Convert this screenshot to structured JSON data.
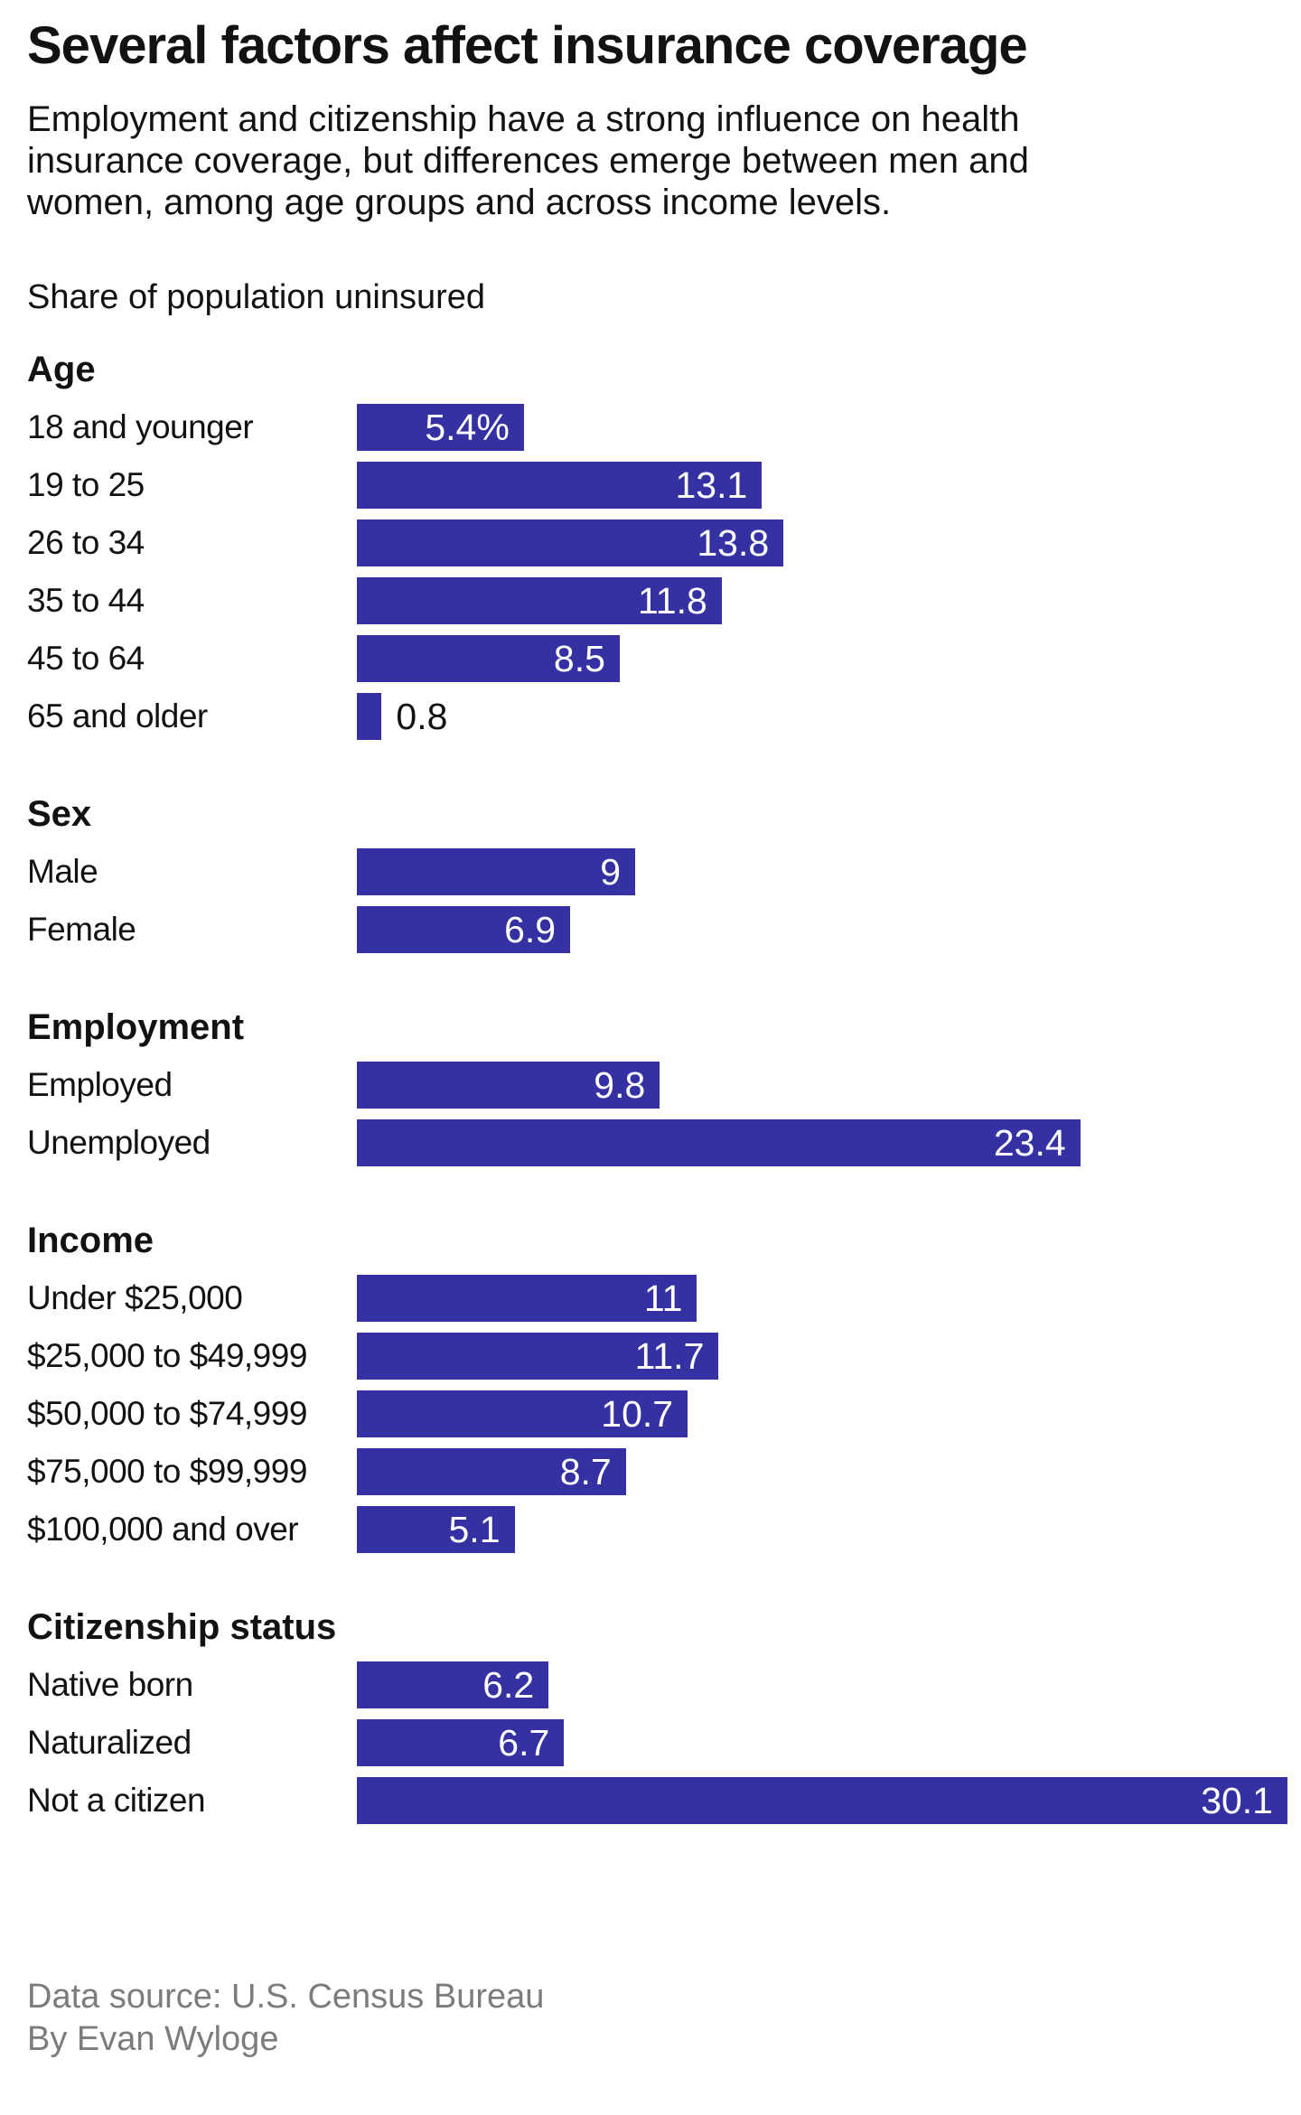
{
  "header": {
    "title": "Several factors affect insurance coverage",
    "subtitle": "Employment and citizenship have a strong influence on health insurance coverage, but differences emerge between men and women, among age groups and across income levels.",
    "chart_label": "Share of population uninsured"
  },
  "colors": {
    "bar": "#3531A3",
    "text": "#121212",
    "muted": "#7C7C7C",
    "value_label": "#FFFFFF"
  },
  "chart_data": {
    "type": "bar",
    "orientation": "horizontal",
    "title": "Share of population uninsured",
    "value_unit": "percent of population uninsured",
    "xlim": [
      0,
      30.1
    ],
    "grid": false,
    "legend": "none",
    "bar_color": "#3531A3",
    "groups": [
      {
        "name": "Age",
        "rows": [
          {
            "label": "18 and younger",
            "value": 5.4,
            "display": "5.4%"
          },
          {
            "label": "19 to 25",
            "value": 13.1,
            "display": "13.1"
          },
          {
            "label": "26 to 34",
            "value": 13.8,
            "display": "13.8"
          },
          {
            "label": "35 to 44",
            "value": 11.8,
            "display": "11.8"
          },
          {
            "label": "45 to 64",
            "value": 8.5,
            "display": "8.5"
          },
          {
            "label": "65 and older",
            "value": 0.8,
            "display": "0.8"
          }
        ]
      },
      {
        "name": "Sex",
        "rows": [
          {
            "label": "Male",
            "value": 9,
            "display": "9"
          },
          {
            "label": "Female",
            "value": 6.9,
            "display": "6.9"
          }
        ]
      },
      {
        "name": "Employment",
        "rows": [
          {
            "label": "Employed",
            "value": 9.8,
            "display": "9.8"
          },
          {
            "label": "Unemployed",
            "value": 23.4,
            "display": "23.4"
          }
        ]
      },
      {
        "name": "Income",
        "rows": [
          {
            "label": "Under $25,000",
            "value": 11,
            "display": "11"
          },
          {
            "label": "$25,000 to $49,999",
            "value": 11.7,
            "display": "11.7"
          },
          {
            "label": "$50,000 to $74,999",
            "value": 10.7,
            "display": "10.7"
          },
          {
            "label": "$75,000 to $99,999",
            "value": 8.7,
            "display": "8.7"
          },
          {
            "label": "$100,000 and over",
            "value": 5.1,
            "display": "5.1"
          }
        ]
      },
      {
        "name": "Citizenship status",
        "rows": [
          {
            "label": "Native born",
            "value": 6.2,
            "display": "6.2"
          },
          {
            "label": "Naturalized",
            "value": 6.7,
            "display": "6.7"
          },
          {
            "label": "Not a citizen",
            "value": 30.1,
            "display": "30.1"
          }
        ]
      }
    ]
  },
  "footer": {
    "source": "Data source: U.S. Census Bureau",
    "byline": "By Evan Wyloge"
  }
}
